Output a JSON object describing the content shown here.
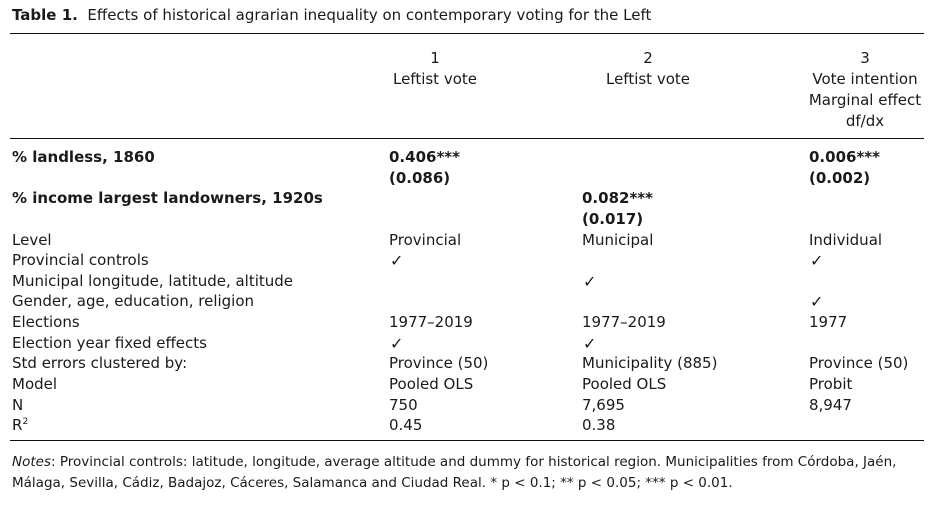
{
  "caption": {
    "label": "Table 1.",
    "title": "Effects of historical agrarian inequality on contemporary voting for the Left"
  },
  "columns": [
    {
      "number": "1",
      "line1": "Leftist vote",
      "line2": "",
      "line3": ""
    },
    {
      "number": "2",
      "line1": "Leftist vote",
      "line2": "",
      "line3": ""
    },
    {
      "number": "3",
      "line1": "Vote intention",
      "line2": "Marginal effect",
      "line3": "df/dx"
    }
  ],
  "coef_rows": {
    "landless": {
      "label": "% landless, 1860",
      "col1_coef": "0.406***",
      "col1_se": "(0.086)",
      "col3_coef": "0.006***",
      "col3_se": "(0.002)"
    },
    "income": {
      "label": "% income largest landowners, 1920s",
      "col2_coef": "0.082***",
      "col2_se": "(0.017)"
    }
  },
  "spec_rows": {
    "level": {
      "label": "Level",
      "c1": "Provincial",
      "c2": "Municipal",
      "c3": "Individual"
    },
    "prov_controls": {
      "label": "Provincial controls",
      "c1": "✓",
      "c3": "✓"
    },
    "muni_geo": {
      "label": "Municipal longitude, latitude, altitude",
      "c2": "✓"
    },
    "demographics": {
      "label": "Gender, age, education, religion",
      "c3": "✓"
    },
    "elections": {
      "label": "Elections",
      "c1": "1977–2019",
      "c2": "1977–2019",
      "c3": "1977"
    },
    "year_fe": {
      "label": "Election year fixed effects",
      "c1": "✓",
      "c2": "✓"
    },
    "clusters": {
      "label": "Std errors clustered by:",
      "c1": "Province (50)",
      "c2": "Municipality (885)",
      "c3": "Province (50)"
    },
    "model": {
      "label": "Model",
      "c1": "Pooled OLS",
      "c2": "Pooled OLS",
      "c3": "Probit"
    },
    "n": {
      "label": "N",
      "c1": "750",
      "c2": "7,695",
      "c3": "8,947"
    },
    "r2": {
      "label_base": "R",
      "label_sup": "2",
      "c1": "0.45",
      "c2": "0.38"
    }
  },
  "notes": {
    "lead": "Notes",
    "text": ": Provincial controls: latitude, longitude, average altitude and dummy for historical region. Municipalities from Córdoba, Jaén, Málaga, Sevilla, Cádiz, Badajoz, Cáceres, Salamanca and Ciudad Real. * p < 0.1; ** p < 0.05; *** p < 0.01."
  }
}
